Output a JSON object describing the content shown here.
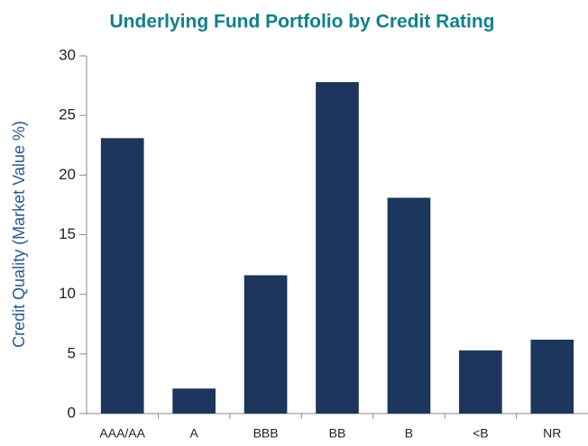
{
  "chart_data": {
    "type": "bar",
    "title": "Underlying Fund Portfolio by Credit Rating",
    "y_label": "Credit Quality (Market Value %)",
    "categories": [
      "AAA/AA",
      "A",
      "BBB",
      "BB",
      "B",
      "<B",
      "NR"
    ],
    "values": [
      23.1,
      2.1,
      11.6,
      27.8,
      18.1,
      5.3,
      6.2
    ],
    "color": "#1d365d",
    "ylim": [
      0,
      30
    ],
    "yticks": [
      0,
      5,
      10,
      15,
      20,
      25,
      30
    ],
    "grid": false
  }
}
